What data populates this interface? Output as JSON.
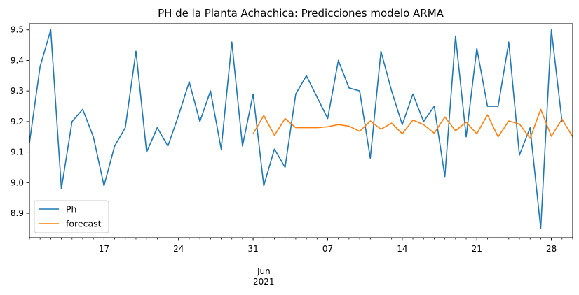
{
  "chart_data": {
    "type": "line",
    "title": "PH de la Planta Achachica: Predicciones modelo ARMA",
    "xlabel": "",
    "ylabel": "",
    "x_range": [
      "2021-05-10",
      "2021-06-30"
    ],
    "ylim": [
      8.82,
      9.52
    ],
    "grid": false,
    "legend": {
      "placement": "lower-left"
    },
    "x_ticks": [
      {
        "date": "2021-05-17",
        "label": "17"
      },
      {
        "date": "2021-05-24",
        "label": "24"
      },
      {
        "date": "2021-05-31",
        "label": "31"
      },
      {
        "date": "2021-06-07",
        "label": "07"
      },
      {
        "date": "2021-06-14",
        "label": "14"
      },
      {
        "date": "2021-06-21",
        "label": "21"
      },
      {
        "date": "2021-06-28",
        "label": "28"
      }
    ],
    "x_major_label": {
      "date": "2021-06-01",
      "lines": [
        "Jun",
        "2021"
      ]
    },
    "y_ticks": [
      8.9,
      9.0,
      9.1,
      9.2,
      9.3,
      9.4,
      9.5
    ],
    "y_tick_labels": [
      "8.9",
      "9.0",
      "9.1",
      "9.2",
      "9.3",
      "9.4",
      "9.5"
    ],
    "series": [
      {
        "name": "Ph",
        "color": "#1f77b4",
        "start": "2021-05-10",
        "values": [
          9.13,
          9.38,
          9.5,
          8.98,
          9.2,
          9.24,
          9.15,
          8.99,
          9.12,
          9.18,
          9.43,
          9.1,
          9.18,
          9.12,
          9.22,
          9.33,
          9.2,
          9.3,
          9.11,
          9.46,
          9.12,
          9.29,
          8.99,
          9.11,
          9.05,
          9.29,
          9.35,
          9.28,
          9.21,
          9.4,
          9.31,
          9.3,
          9.08,
          9.43,
          9.3,
          9.19,
          9.29,
          9.2,
          9.25,
          9.02,
          9.48,
          9.15,
          9.44,
          9.25,
          9.25,
          9.46,
          9.09,
          9.18,
          8.85,
          9.5,
          9.2
        ]
      },
      {
        "name": "forecast",
        "color": "#ff7f0e",
        "start": "2021-05-31",
        "values": [
          9.16,
          9.22,
          9.155,
          9.21,
          9.18,
          9.18,
          9.18,
          9.183,
          9.19,
          9.185,
          9.168,
          9.202,
          9.175,
          9.195,
          9.16,
          9.205,
          9.19,
          9.162,
          9.215,
          9.17,
          9.198,
          9.16,
          9.222,
          9.15,
          9.202,
          9.192,
          9.145,
          9.24,
          9.152,
          9.208,
          9.15
        ]
      }
    ]
  }
}
